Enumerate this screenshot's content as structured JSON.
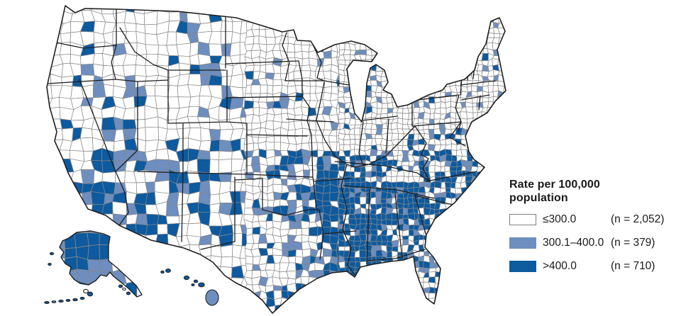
{
  "figure": {
    "legend": {
      "title_line1": "Rate per 100,000",
      "title_line2": "population",
      "classes": [
        {
          "range": "≤300.0",
          "count": "(n = 2,052)",
          "color": "#FFFFFF",
          "border": "#7F7F7F"
        },
        {
          "range": "300.1–400.0",
          "count": "(n = 379)",
          "color": "#6D8EBF",
          "border": "#6D8EBF"
        },
        {
          "range": ">400.0",
          "count": "(n = 710)",
          "color": "#0D5A9F",
          "border": "#0D5A9F"
        }
      ]
    },
    "map": {
      "county_line_color": "#878787",
      "state_line_color": "#1F1F1F",
      "background": "#FFFFFF"
    }
  },
  "chart_data": {
    "type": "heatmap",
    "subtype": "choropleth_us_counties",
    "title": "Rate per 100,000 population",
    "legend_position": "right",
    "grid": false,
    "classes": [
      {
        "label": "≤300.0",
        "n": 2052,
        "color": "#FFFFFF"
      },
      {
        "label": "300.1–400.0",
        "n": 379,
        "color": "#6D8EBF"
      },
      {
        "label": ">400.0",
        "n": 710,
        "color": "#0D5A9F"
      }
    ],
    "pattern_note": "Counties in the highest class (>400.0) cluster densely across the Southeast (Mississippi, Alabama, Georgia, South Carolina, Louisiana, Arkansas, west Tennessee, eastern North Carolina), Oklahoma/east Texas, the Four Corners/New Mexico–Arizona area, southern California, and Alaska; most counties in the upper Midwest, northern plains, and Northeast are in the lowest class (≤300.0)."
  }
}
